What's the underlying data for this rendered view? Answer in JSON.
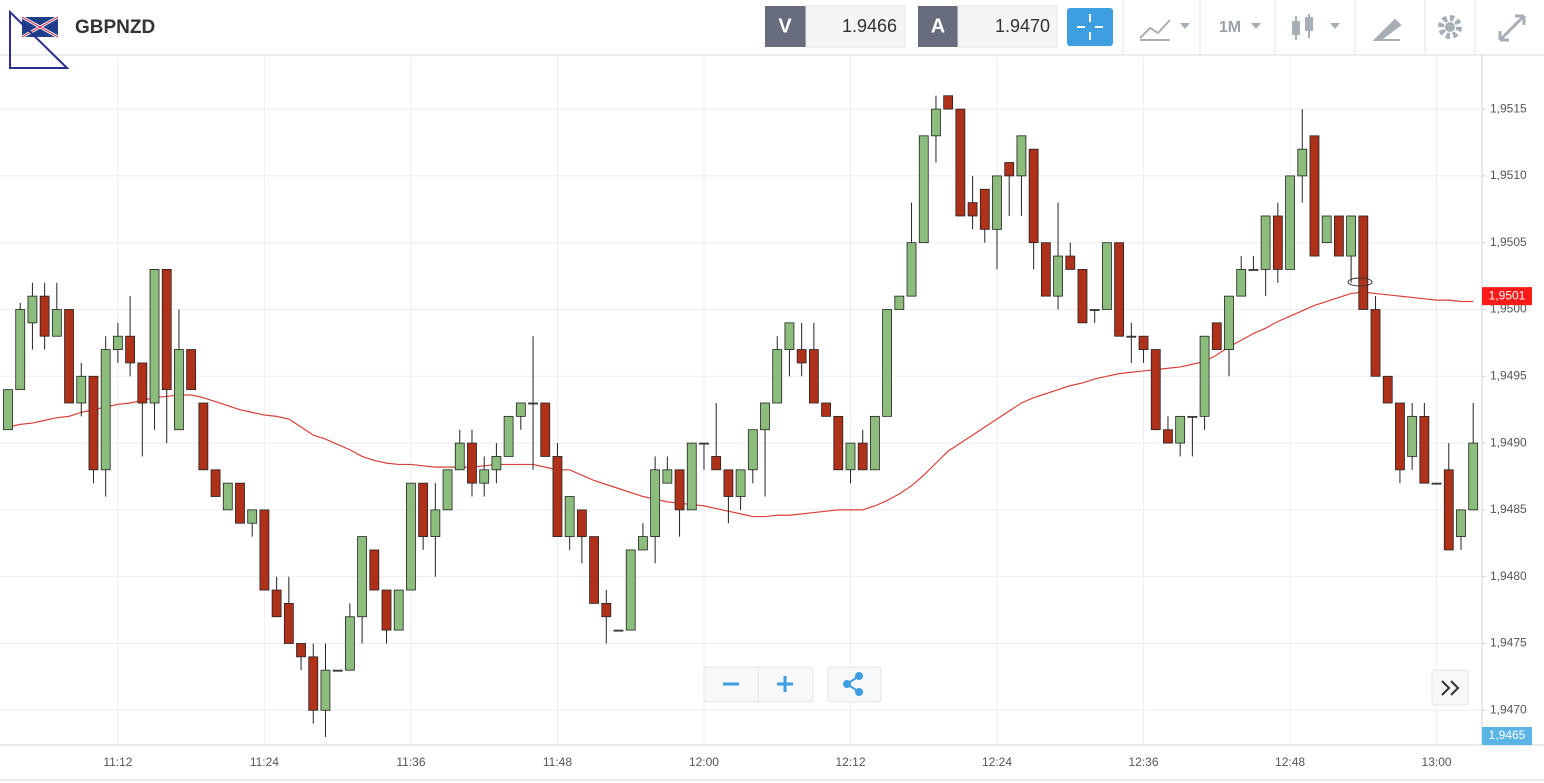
{
  "header": {
    "symbol": "GBPNZD",
    "bid_label": "V",
    "bid": "1.9466",
    "ask_label": "A",
    "ask": "1.9470",
    "timeframe": "1M"
  },
  "chart_data": {
    "type": "candlestick",
    "categories": [
      null,
      null,
      null,
      null,
      null,
      null,
      null,
      null,
      null,
      "11:12",
      null,
      null,
      null,
      null,
      null,
      null,
      null,
      null,
      null,
      null,
      null,
      "11:24",
      null,
      null,
      null,
      null,
      null,
      null,
      null,
      null,
      null,
      null,
      null,
      "11:36",
      null,
      null,
      null,
      null,
      null,
      null,
      null,
      null,
      null,
      null,
      null,
      "11:48",
      null,
      null,
      null,
      null,
      null,
      null,
      null,
      null,
      null,
      null,
      null,
      "12:00",
      null,
      null,
      null,
      null,
      null,
      null,
      null,
      null,
      null,
      null,
      null,
      "12:12",
      null,
      null,
      null,
      null,
      null,
      null,
      null,
      null,
      null,
      null,
      null,
      "12:24",
      null,
      null,
      null,
      null,
      null,
      null,
      null,
      null,
      null,
      null,
      null,
      "12:36",
      null,
      null,
      null,
      null,
      null,
      null,
      null,
      null,
      null,
      null,
      null,
      "12:48",
      null,
      null,
      null,
      null,
      null,
      null,
      null,
      null,
      null,
      null,
      null,
      "13:00",
      null,
      null,
      null
    ],
    "open": [
      1.9491,
      1.9494,
      1.9499,
      1.9501,
      1.9498,
      1.95,
      1.9493,
      1.9495,
      1.9488,
      1.9497,
      1.9498,
      1.9496,
      1.9493,
      1.9503,
      1.9491,
      1.9497,
      1.9493,
      1.9488,
      1.9485,
      1.9487,
      1.9484,
      1.9485,
      1.9479,
      1.9478,
      1.9475,
      1.9474,
      1.947,
      1.9473,
      1.9473,
      1.9477,
      1.9482,
      1.9479,
      1.9476,
      1.9479,
      1.9487,
      1.9483,
      1.9485,
      1.9488,
      1.949,
      1.9487,
      1.9488,
      1.9489,
      1.9492,
      1.9493,
      1.9493,
      1.9489,
      1.9483,
      1.9485,
      1.9483,
      1.9478,
      1.9476,
      1.9476,
      1.9482,
      1.9483,
      1.9487,
      1.9488,
      1.9485,
      1.949,
      1.9489,
      1.9488,
      1.9486,
      1.9488,
      1.9491,
      1.9493,
      1.9497,
      1.9497,
      1.9497,
      1.9493,
      1.9492,
      1.9488,
      1.949,
      1.9488,
      1.9492,
      1.95,
      1.9501,
      1.9505,
      1.9513,
      1.9516,
      1.9515,
      1.9508,
      1.9509,
      1.9506,
      1.9511,
      1.951,
      1.9512,
      1.9505,
      1.9501,
      1.9504,
      1.9503,
      1.95,
      1.95,
      1.9505,
      1.9498,
      1.9498,
      1.9497,
      1.9491,
      1.949,
      1.9492,
      1.9492,
      1.9499,
      1.9497,
      1.9501,
      1.9503,
      1.9503,
      1.9507,
      1.9503,
      1.951,
      1.9513,
      1.9505,
      1.9507,
      1.9504,
      1.9507,
      1.95,
      1.9495,
      1.9493,
      1.9489,
      1.9492,
      1.9487,
      1.9488,
      1.9483,
      1.9485
    ],
    "high": [
      1.9494,
      1.95005,
      1.9502,
      1.9502,
      1.9502,
      1.95,
      1.9496,
      1.9495,
      1.9498,
      1.9499,
      1.9501,
      1.9496,
      1.9503,
      1.9503,
      1.95,
      1.9497,
      1.9493,
      1.9488,
      1.9487,
      1.9487,
      1.9485,
      1.9485,
      1.948,
      1.948,
      1.9475,
      1.9475,
      1.9475,
      1.9473,
      1.9478,
      1.9483,
      1.9482,
      1.9479,
      1.9479,
      1.9487,
      1.9487,
      1.9487,
      1.9488,
      1.9491,
      1.9491,
      1.9489,
      1.949,
      1.9492,
      1.9493,
      1.9498,
      1.9493,
      1.949,
      1.9486,
      1.9485,
      1.9483,
      1.9479,
      1.9476,
      1.9482,
      1.9484,
      1.9489,
      1.9489,
      1.9488,
      1.949,
      1.949,
      1.9493,
      1.9488,
      1.9488,
      1.9491,
      1.9493,
      1.9498,
      1.9499,
      1.9499,
      1.9499,
      1.9493,
      1.9492,
      1.949,
      1.9491,
      1.9492,
      1.95,
      1.9501,
      1.9508,
      1.9513,
      1.9516,
      1.9516,
      1.9515,
      1.951,
      1.9509,
      1.951,
      1.9511,
      1.9513,
      1.9512,
      1.9505,
      1.9508,
      1.9505,
      1.9503,
      1.95,
      1.9505,
      1.9505,
      1.9499,
      1.9498,
      1.9497,
      1.9492,
      1.9492,
      1.9492,
      1.9498,
      1.9499,
      1.9501,
      1.9504,
      1.9504,
      1.9507,
      1.9508,
      1.951,
      1.9515,
      1.9513,
      1.9507,
      1.9507,
      1.9507,
      1.9507,
      1.9501,
      1.9495,
      1.9493,
      1.9493,
      1.9493,
      1.9487,
      1.949,
      1.9485,
      1.9493
    ],
    "low": [
      1.9491,
      1.9494,
      1.9497,
      1.9497,
      1.9498,
      1.9493,
      1.9492,
      1.9487,
      1.9486,
      1.9496,
      1.9495,
      1.9489,
      1.9491,
      1.949,
      1.9491,
      1.9494,
      1.9488,
      1.9486,
      1.9485,
      1.9484,
      1.9483,
      1.9479,
      1.9477,
      1.9475,
      1.9473,
      1.9469,
      1.9468,
      1.9473,
      1.9473,
      1.9475,
      1.9479,
      1.9475,
      1.9476,
      1.9479,
      1.9482,
      1.948,
      1.9485,
      1.9488,
      1.9486,
      1.9486,
      1.9487,
      1.9489,
      1.9491,
      1.9488,
      1.9489,
      1.9483,
      1.9482,
      1.9481,
      1.9478,
      1.9475,
      1.9476,
      1.9476,
      1.9482,
      1.9481,
      1.9487,
      1.9483,
      1.9485,
      1.9488,
      1.9488,
      1.9484,
      1.9485,
      1.9487,
      1.9486,
      1.9493,
      1.9495,
      1.9495,
      1.9493,
      1.9492,
      1.9488,
      1.9487,
      1.9488,
      1.9488,
      1.9492,
      1.95,
      1.9501,
      1.9505,
      1.9511,
      1.9515,
      1.9507,
      1.9506,
      1.9505,
      1.9503,
      1.9507,
      1.9507,
      1.9503,
      1.9501,
      1.95,
      1.9503,
      1.9499,
      1.9499,
      1.95,
      1.9498,
      1.9496,
      1.9496,
      1.9491,
      1.949,
      1.9489,
      1.9489,
      1.9491,
      1.9497,
      1.9495,
      1.9501,
      1.9503,
      1.9501,
      1.9502,
      1.9503,
      1.9508,
      1.9504,
      1.9505,
      1.9504,
      1.9502,
      1.95,
      1.9495,
      1.9493,
      1.9487,
      1.9488,
      1.9487,
      1.9487,
      1.9482,
      1.9482,
      1.9485
    ],
    "close": [
      1.9494,
      1.95,
      1.9501,
      1.9498,
      1.95,
      1.9493,
      1.9495,
      1.9488,
      1.9497,
      1.9498,
      1.9496,
      1.9493,
      1.9503,
      1.9494,
      1.9497,
      1.9494,
      1.9488,
      1.9486,
      1.9487,
      1.9484,
      1.9485,
      1.9479,
      1.9477,
      1.9475,
      1.9474,
      1.947,
      1.9473,
      1.9473,
      1.9477,
      1.9483,
      1.9479,
      1.9476,
      1.9479,
      1.9487,
      1.9483,
      1.9485,
      1.9488,
      1.949,
      1.9487,
      1.9488,
      1.9489,
      1.9492,
      1.9493,
      1.9493,
      1.9489,
      1.9483,
      1.9486,
      1.9483,
      1.9478,
      1.9477,
      1.9476,
      1.9482,
      1.9483,
      1.9488,
      1.9488,
      1.9485,
      1.949,
      1.949,
      1.9488,
      1.9486,
      1.9488,
      1.9491,
      1.9493,
      1.9497,
      1.9499,
      1.9496,
      1.9493,
      1.9492,
      1.9488,
      1.949,
      1.9488,
      1.9492,
      1.95,
      1.9501,
      1.9505,
      1.9513,
      1.9515,
      1.9515,
      1.9507,
      1.9507,
      1.9506,
      1.951,
      1.951,
      1.9513,
      1.9505,
      1.9501,
      1.9504,
      1.9503,
      1.9499,
      1.95,
      1.9505,
      1.9498,
      1.9498,
      1.9497,
      1.9491,
      1.949,
      1.9492,
      1.9492,
      1.9498,
      1.9497,
      1.9501,
      1.9503,
      1.9503,
      1.9507,
      1.9503,
      1.951,
      1.9512,
      1.9504,
      1.9507,
      1.9504,
      1.9507,
      1.95,
      1.9495,
      1.9493,
      1.9488,
      1.9492,
      1.9487,
      1.9487,
      1.9482,
      1.9485,
      1.949
    ],
    "up_color": "#8cbd7c",
    "down_color": "#b0311a",
    "wick_color": "#222222",
    "ma": {
      "color": "#d9413a",
      "values": [
        1.94912,
        1.94914,
        1.94915,
        1.94917,
        1.94919,
        1.9492,
        1.94923,
        1.94925,
        1.94927,
        1.94929,
        1.9493,
        1.94932,
        1.94934,
        1.94935,
        1.94936,
        1.94936,
        1.94934,
        1.94931,
        1.94928,
        1.94925,
        1.94923,
        1.94921,
        1.9492,
        1.94918,
        1.94912,
        1.94906,
        1.94903,
        1.94899,
        1.94895,
        1.9489,
        1.94887,
        1.94885,
        1.94884,
        1.94884,
        1.94883,
        1.94882,
        1.94882,
        1.94882,
        1.94882,
        1.94883,
        1.94884,
        1.94884,
        1.94884,
        1.94884,
        1.94882,
        1.9488,
        1.9488,
        1.94876,
        1.94872,
        1.94869,
        1.94866,
        1.94863,
        1.9486,
        1.94858,
        1.94856,
        1.94855,
        1.94854,
        1.94853,
        1.94851,
        1.94849,
        1.94847,
        1.94845,
        1.94845,
        1.94846,
        1.94846,
        1.94847,
        1.94848,
        1.94849,
        1.9485,
        1.9485,
        1.9485,
        1.94853,
        1.94857,
        1.94862,
        1.94868,
        1.94876,
        1.94885,
        1.94894,
        1.949,
        1.94906,
        1.94912,
        1.94918,
        1.94924,
        1.9493,
        1.94934,
        1.94937,
        1.9494,
        1.94943,
        1.94945,
        1.94948,
        1.9495,
        1.94952,
        1.94953,
        1.94954,
        1.94955,
        1.94956,
        1.94957,
        1.94959,
        1.94961,
        1.94966,
        1.94972,
        1.94977,
        1.94982,
        1.94986,
        1.94991,
        1.94995,
        1.94999,
        1.95003,
        1.95006,
        1.95009,
        1.95012,
        1.95013,
        1.95012,
        1.95011,
        1.9501,
        1.95009,
        1.95008,
        1.95007,
        1.95007,
        1.95006,
        1.95006
      ]
    },
    "last_price": {
      "value": 1.9501,
      "label": "1,9501"
    },
    "cursor_price": {
      "value": 1.9465,
      "label": "1,9465"
    },
    "ylim": [
      1.94674,
      1.95189
    ],
    "yticks": [
      {
        "value": 1.947,
        "label": "1,9470"
      },
      {
        "value": 1.9475,
        "label": "1,9475"
      },
      {
        "value": 1.948,
        "label": "1,9480"
      },
      {
        "value": 1.9485,
        "label": "1,9485"
      },
      {
        "value": 1.949,
        "label": "1,9490"
      },
      {
        "value": 1.9495,
        "label": "1,9495"
      },
      {
        "value": 1.95,
        "label": "1,9500"
      },
      {
        "value": 1.9505,
        "label": "1,9505"
      },
      {
        "value": 1.951,
        "label": "1,9510"
      },
      {
        "value": 1.9515,
        "label": "1,9515"
      }
    ],
    "grid": true
  }
}
